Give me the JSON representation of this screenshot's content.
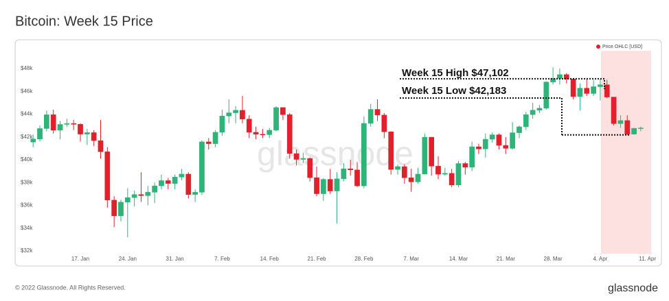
{
  "chart_data": {
    "type": "candlestick",
    "title": "Bitcoin: Week 15 Price",
    "watermark": "glassnode",
    "ylim": [
      32000,
      48000
    ],
    "yticks": [
      {
        "value": 32000,
        "label": "$32k"
      },
      {
        "value": 34000,
        "label": "$34k"
      },
      {
        "value": 36000,
        "label": "$36k"
      },
      {
        "value": 38000,
        "label": "$38k"
      },
      {
        "value": 40000,
        "label": "$40k"
      },
      {
        "value": 42000,
        "label": "$42k"
      },
      {
        "value": 44000,
        "label": "$44k"
      },
      {
        "value": 46000,
        "label": "$46k"
      },
      {
        "value": 48000,
        "label": "$48k"
      }
    ],
    "grid": false,
    "categories": [
      null,
      null,
      null,
      null,
      null,
      null,
      null,
      "17. Jan",
      null,
      null,
      null,
      null,
      null,
      null,
      "24. Jan",
      null,
      null,
      null,
      null,
      null,
      null,
      "31. Jan",
      null,
      null,
      null,
      null,
      null,
      null,
      "7. Feb",
      null,
      null,
      null,
      null,
      null,
      null,
      "14. Feb",
      null,
      null,
      null,
      null,
      null,
      null,
      "21. Feb",
      null,
      null,
      null,
      null,
      null,
      null,
      "28. Feb",
      null,
      null,
      null,
      null,
      null,
      null,
      "7. Mar",
      null,
      null,
      null,
      null,
      null,
      null,
      "14. Mar",
      null,
      null,
      null,
      null,
      null,
      null,
      "21. Mar",
      null,
      null,
      null,
      null,
      null,
      null,
      "28. Mar",
      null,
      null,
      null,
      null,
      null,
      null,
      "4. Apr",
      null,
      null,
      null,
      null,
      null,
      null,
      "11. Apr"
    ],
    "series": [
      {
        "name": "Price OHLC [USD]",
        "color": "#e0202b",
        "up_color": "#2fb378",
        "down_color": "#e0202b",
        "open": [
          41550,
          41820,
          42740,
          43950,
          42590,
          43100,
          43180,
          43110,
          42250,
          42380,
          41680,
          40700,
          36460,
          35080,
          36280,
          36680,
          36950,
          36850,
          37150,
          37710,
          38170,
          37920,
          38480,
          38740,
          36950,
          37150,
          41570,
          41410,
          42410,
          43840,
          44120,
          44340,
          43570,
          42410,
          42240,
          42200,
          42590,
          44580,
          43960,
          40540,
          40030,
          40120,
          38430,
          37020,
          38280,
          37260,
          38330,
          39210,
          39110,
          37710,
          43190,
          44420,
          43920,
          42450,
          39150,
          39400,
          38420,
          38060,
          38740,
          41980,
          39440,
          38730,
          38810,
          37790,
          39670,
          39340,
          41140,
          40950,
          41800,
          42190,
          41260,
          41000,
          42370,
          42890,
          43960,
          44350,
          44520,
          46820,
          47130,
          47470,
          47080,
          45540,
          46280,
          45810,
          46410,
          46580,
          45500,
          43170,
          43440,
          42250,
          42760,
          null
        ],
        "high": [
          42200,
          43000,
          44300,
          44400,
          43400,
          43600,
          43500,
          43200,
          42700,
          42600,
          43500,
          41100,
          36800,
          36500,
          37500,
          37300,
          38900,
          37700,
          38000,
          38700,
          38400,
          38700,
          39200,
          38900,
          37400,
          41700,
          41900,
          42600,
          44400,
          45300,
          44700,
          45600,
          43900,
          42900,
          42700,
          42800,
          44700,
          44600,
          44100,
          40900,
          40600,
          40200,
          39400,
          38400,
          39200,
          38900,
          39700,
          40000,
          39800,
          43800,
          44900,
          45300,
          44100,
          42500,
          39600,
          39600,
          39200,
          39300,
          42300,
          42000,
          40300,
          39300,
          39200,
          39900,
          39800,
          41600,
          41400,
          42300,
          42400,
          42300,
          42000,
          43300,
          43000,
          44200,
          45000,
          44800,
          46900,
          48100,
          48000,
          47600,
          47100,
          46700,
          47100,
          47000,
          47102,
          47000,
          45500,
          43900,
          43900,
          42800,
          42900,
          null
        ],
        "low": [
          41100,
          41600,
          42500,
          42300,
          41800,
          42900,
          42600,
          41600,
          41300,
          41200,
          40100,
          35800,
          34100,
          34600,
          33200,
          35900,
          36300,
          36000,
          36200,
          37400,
          37400,
          37400,
          38200,
          36600,
          36300,
          36900,
          40900,
          41100,
          42100,
          43200,
          43200,
          43200,
          41900,
          41800,
          41900,
          41900,
          42500,
          43500,
          40100,
          39500,
          39700,
          38100,
          36800,
          36400,
          37000,
          34400,
          38100,
          38600,
          37600,
          37500,
          42900,
          43400,
          41900,
          38700,
          38700,
          37900,
          37200,
          37900,
          38700,
          38600,
          38300,
          38600,
          37600,
          37600,
          38700,
          39000,
          40500,
          40200,
          41500,
          40900,
          40500,
          40900,
          41900,
          42600,
          43600,
          44100,
          44400,
          46600,
          46600,
          46700,
          45300,
          44300,
          45600,
          45600,
          45200,
          45400,
          43000,
          42800,
          42183,
          42200,
          42500,
          null
        ],
        "close": [
          41820,
          42740,
          43950,
          42590,
          43100,
          43180,
          43110,
          42250,
          42380,
          41680,
          40700,
          36460,
          35080,
          36280,
          36680,
          36950,
          36850,
          37150,
          37710,
          38170,
          37920,
          38480,
          38740,
          36950,
          37150,
          41570,
          41410,
          42410,
          43840,
          44120,
          44340,
          43570,
          42410,
          42240,
          42200,
          42590,
          44580,
          43960,
          40540,
          40030,
          40120,
          38430,
          37020,
          38280,
          37260,
          38330,
          39210,
          39110,
          37710,
          43190,
          44420,
          43920,
          42450,
          39150,
          39400,
          38420,
          38060,
          38740,
          41980,
          39440,
          38730,
          38810,
          37790,
          39670,
          39340,
          41140,
          40950,
          41800,
          42190,
          41260,
          41000,
          42370,
          42890,
          43960,
          44350,
          44520,
          46820,
          47130,
          47470,
          47080,
          45540,
          46280,
          45810,
          46410,
          46580,
          45500,
          43170,
          43440,
          42250,
          42760,
          42790,
          null
        ]
      }
    ],
    "annotations": [
      {
        "text": "Week 15 High $47,102",
        "value": 47102
      },
      {
        "text": "Week 15 Low $42,183",
        "value": 42183
      }
    ]
  },
  "footer": {
    "copyright": "© 2022 Glassnode. All Rights Reserved.",
    "logo": "glassnode"
  }
}
